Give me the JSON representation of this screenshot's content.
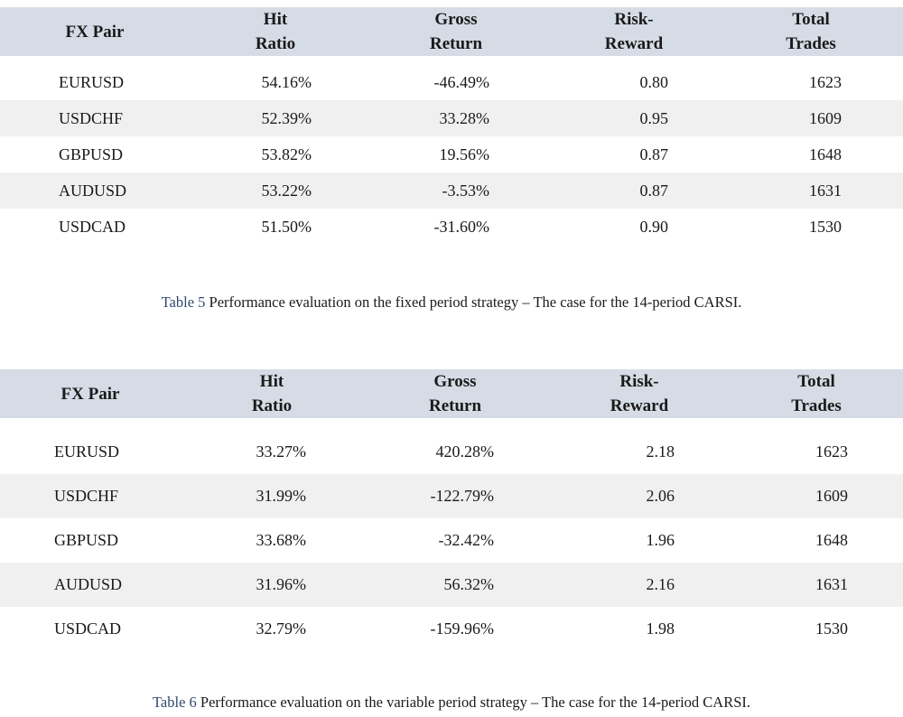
{
  "tables": [
    {
      "headers": [
        {
          "line1": "FX Pair",
          "line2": ""
        },
        {
          "line1": "Hit",
          "line2": "Ratio"
        },
        {
          "line1": "Gross",
          "line2": "Return"
        },
        {
          "line1": "Risk-",
          "line2": "Reward"
        },
        {
          "line1": "Total",
          "line2": "Trades"
        }
      ],
      "rows": [
        {
          "pair": "EURUSD",
          "hit": "54.16%",
          "gross": "-46.49%",
          "rr": "0.80",
          "trades": "1623"
        },
        {
          "pair": "USDCHF",
          "hit": "52.39%",
          "gross": "33.28%",
          "rr": "0.95",
          "trades": "1609"
        },
        {
          "pair": "GBPUSD",
          "hit": "53.82%",
          "gross": "19.56%",
          "rr": "0.87",
          "trades": "1648"
        },
        {
          "pair": "AUDUSD",
          "hit": "53.22%",
          "gross": "-3.53%",
          "rr": "0.87",
          "trades": "1631"
        },
        {
          "pair": "USDCAD",
          "hit": "51.50%",
          "gross": "-31.60%",
          "rr": "0.90",
          "trades": "1530"
        }
      ],
      "caption_label": "Table 5",
      "caption_text": " Performance evaluation on the fixed period strategy – The case for the 14-period CARSI."
    },
    {
      "headers": [
        {
          "line1": "FX Pair",
          "line2": ""
        },
        {
          "line1": "Hit",
          "line2": "Ratio"
        },
        {
          "line1": "Gross",
          "line2": "Return"
        },
        {
          "line1": "Risk-",
          "line2": "Reward"
        },
        {
          "line1": "Total",
          "line2": "Trades"
        }
      ],
      "rows": [
        {
          "pair": "EURUSD",
          "hit": "33.27%",
          "gross": "420.28%",
          "rr": "2.18",
          "trades": "1623"
        },
        {
          "pair": "USDCHF",
          "hit": "31.99%",
          "gross": "-122.79%",
          "rr": "2.06",
          "trades": "1609"
        },
        {
          "pair": "GBPUSD",
          "hit": "33.68%",
          "gross": "-32.42%",
          "rr": "1.96",
          "trades": "1648"
        },
        {
          "pair": "AUDUSD",
          "hit": "31.96%",
          "gross": "56.32%",
          "rr": "2.16",
          "trades": "1631"
        },
        {
          "pair": "USDCAD",
          "hit": "32.79%",
          "gross": "-159.96%",
          "rr": "1.98",
          "trades": "1530"
        }
      ],
      "caption_label": "Table 6",
      "caption_text": " Performance evaluation on the variable period strategy – The case for the 14-period CARSI."
    }
  ]
}
